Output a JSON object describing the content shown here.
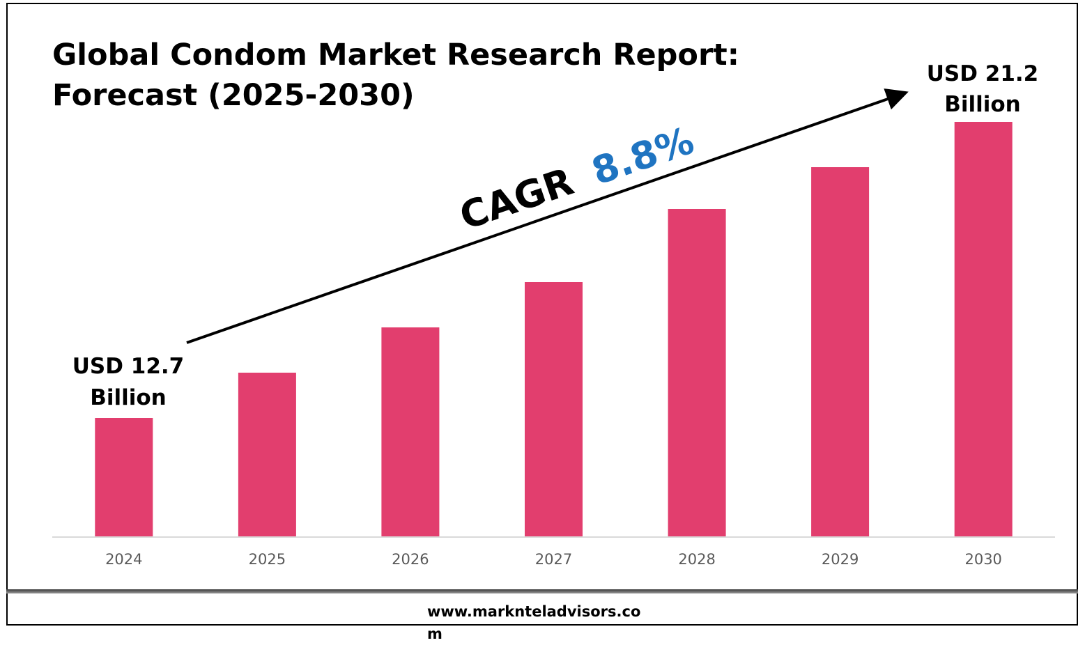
{
  "title": "Global Condom Market Research Report:\nForecast (2025-2030)",
  "website": "www.marknteladvisors.com",
  "colors": {
    "bar": "#e23e6e",
    "cagr_value": "#1f74c1",
    "axis": "#d9d9d9",
    "tick_text": "#595959"
  },
  "chart_data": {
    "type": "bar",
    "title": "Global Condom Market Research Report: Forecast (2025-2030)",
    "xlabel": "",
    "ylabel": "",
    "categories": [
      "2024",
      "2025",
      "2026",
      "2027",
      "2028",
      "2029",
      "2030"
    ],
    "values": [
      12.7,
      14.0,
      15.3,
      16.6,
      18.7,
      19.9,
      21.2
    ],
    "ylim": [
      9.3,
      21.2
    ],
    "grid": false,
    "legend": "none",
    "annotations": {
      "start_label_line1": "USD 12.7",
      "start_label_line2": "Billion",
      "end_label_line1": "USD 21.2",
      "end_label_line2": "Billion",
      "cagr_prefix": "CAGR",
      "cagr_value": "8.8%"
    }
  }
}
